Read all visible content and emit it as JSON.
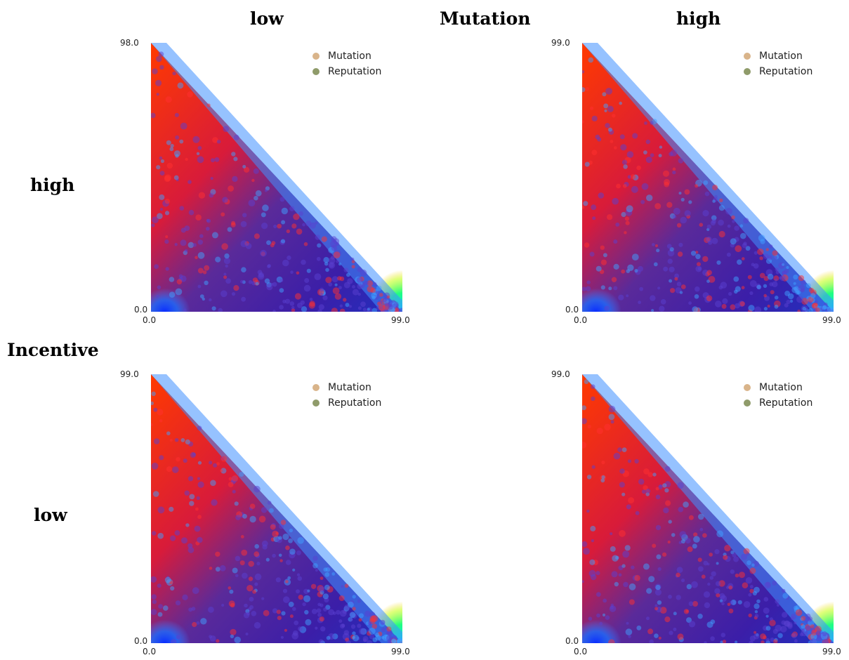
{
  "headers": {
    "col_low": "low",
    "mutation": "Mutation",
    "col_high": "high",
    "row_high": "high",
    "incentive": "Incentive",
    "row_low": "low"
  },
  "colors": {
    "mutation_marker": "#d9b48a",
    "reputation_marker": "#8f9b6a"
  },
  "chart_data": [
    {
      "type": "heatmap",
      "panel": "incentive-high-mutation-low",
      "xlim": [
        0.0,
        99.0
      ],
      "ylim": [
        0.0,
        98.0
      ],
      "x_ticks": [
        "0.0",
        "99.0"
      ],
      "y_ticks": [
        "0.0",
        "98.0"
      ],
      "legend": [
        "Mutation",
        "Reputation"
      ],
      "legend_position": "top-right",
      "colormap": "jet"
    },
    {
      "type": "heatmap",
      "panel": "incentive-high-mutation-high",
      "xlim": [
        0.0,
        99.0
      ],
      "ylim": [
        0.0,
        99.0
      ],
      "x_ticks": [
        "0.0",
        "99.0"
      ],
      "y_ticks": [
        "0.0",
        "99.0"
      ],
      "legend": [
        "Mutation",
        "Reputation"
      ],
      "legend_position": "top-right",
      "colormap": "jet"
    },
    {
      "type": "heatmap",
      "panel": "incentive-low-mutation-low",
      "xlim": [
        0.0,
        99.0
      ],
      "ylim": [
        0.0,
        99.0
      ],
      "x_ticks": [
        "0.0",
        "99.0"
      ],
      "y_ticks": [
        "0.0",
        "99.0"
      ],
      "legend": [
        "Mutation",
        "Reputation"
      ],
      "legend_position": "top-right",
      "colormap": "jet"
    },
    {
      "type": "heatmap",
      "panel": "incentive-low-mutation-high",
      "xlim": [
        0.0,
        99.0
      ],
      "ylim": [
        0.0,
        99.0
      ],
      "x_ticks": [
        "0.0",
        "99.0"
      ],
      "y_ticks": [
        "0.0",
        "99.0"
      ],
      "legend": [
        "Mutation",
        "Reputation"
      ],
      "legend_position": "top-right",
      "colormap": "jet"
    }
  ]
}
